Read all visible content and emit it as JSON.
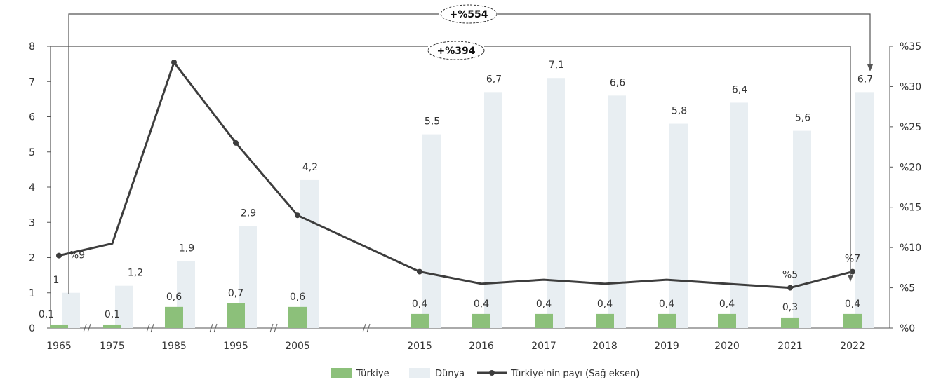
{
  "chart_data": {
    "type": "bar",
    "categories": [
      "1965",
      "1975",
      "1985",
      "1995",
      "2005",
      "2015",
      "2016",
      "2017",
      "2018",
      "2019",
      "2020",
      "2021",
      "2022"
    ],
    "series": [
      {
        "name": "Türkiye",
        "type": "bar",
        "axis": "left",
        "color": "#8cc07a",
        "values": [
          0.1,
          0.1,
          0.6,
          0.7,
          0.6,
          0.4,
          0.4,
          0.4,
          0.4,
          0.4,
          0.4,
          0.3,
          0.4
        ]
      },
      {
        "name": "Dünya",
        "type": "bar",
        "axis": "left",
        "color": "#e8eef2",
        "values": [
          1.0,
          1.2,
          1.9,
          2.9,
          4.2,
          5.5,
          6.7,
          7.1,
          6.6,
          5.8,
          6.4,
          5.6,
          6.7
        ]
      },
      {
        "name": "Türkiye'nin payı (Sağ eksen)",
        "type": "line",
        "axis": "right",
        "color": "#3d3d3d",
        "values": [
          9,
          10.5,
          33,
          23,
          14,
          7,
          5.5,
          6,
          5.5,
          6,
          5.5,
          5,
          7
        ]
      }
    ],
    "share_labels": [
      {
        "index": 0,
        "text": "%9"
      },
      {
        "index": 11,
        "text": "%5"
      },
      {
        "index": 12,
        "text": "%7"
      }
    ],
    "y_left": {
      "min": 0,
      "max": 8,
      "ticks": [
        "0",
        "1",
        "2",
        "3",
        "4",
        "5",
        "6",
        "7",
        "8"
      ]
    },
    "y_right": {
      "min": 0,
      "max": 35,
      "ticks": [
        "%0",
        "%5",
        "%10",
        "%15",
        "%20",
        "%25",
        "%30",
        "%35"
      ]
    },
    "annotations": {
      "world_change": "+%554",
      "turkey_change": "+%394"
    },
    "legend": {
      "position": "bottom",
      "items": [
        "Türkiye",
        "Dünya",
        "Türkiye'nin payı (Sağ eksen)"
      ]
    },
    "xlabel": "",
    "ylabel": ""
  }
}
